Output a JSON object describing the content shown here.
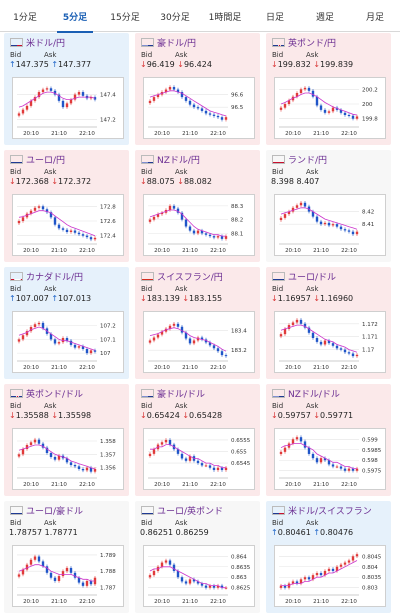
{
  "tabs": [
    {
      "label": "1分足",
      "active": false
    },
    {
      "label": "5分足",
      "active": true
    },
    {
      "label": "15分足",
      "active": false
    },
    {
      "label": "30分足",
      "active": false
    },
    {
      "label": "1時間足",
      "active": false
    },
    {
      "label": "日足",
      "active": false
    },
    {
      "label": "週足",
      "active": false
    },
    {
      "label": "月足",
      "active": false
    }
  ],
  "labels": {
    "bid": "Bid",
    "ask": "Ask"
  },
  "colors": {
    "up_arrow": "#1d64c8",
    "down_arrow": "#d93838",
    "title": "#6a2c91",
    "ma_line": "#cc33cc",
    "candle_up": "#e03a3a",
    "candle_down": "#1f55c8",
    "active_tab": "#1a5fb4"
  },
  "chart_data": [
    {
      "type": "candlestick",
      "pair": "米ドル/円",
      "flag": "us",
      "trend": "up",
      "bid": "147.375",
      "ask": "147.377",
      "x_ticks": [
        "20:10",
        "21:10",
        "22:10"
      ],
      "y_ticks": [
        "147.4",
        "147.2"
      ],
      "ylim": [
        147.15,
        147.5
      ],
      "tick_values": [
        147.4,
        147.2
      ],
      "closes": [
        147.25,
        147.28,
        147.31,
        147.35,
        147.38,
        147.42,
        147.44,
        147.45,
        147.43,
        147.4,
        147.35,
        147.3,
        147.33,
        147.36,
        147.4,
        147.42,
        147.39,
        147.37,
        147.38,
        147.36
      ],
      "ma": [
        147.3,
        147.31,
        147.33,
        147.35,
        147.37,
        147.39,
        147.41,
        147.42,
        147.42,
        147.41,
        147.39,
        147.37,
        147.36,
        147.36,
        147.37,
        147.38,
        147.38,
        147.38,
        147.38,
        147.37
      ]
    },
    {
      "type": "candlestick",
      "pair": "豪ドル/円",
      "flag": "au",
      "trend": "down",
      "bid": "96.419",
      "ask": "96.424",
      "x_ticks": [
        "20:10",
        "21:10",
        "22:10"
      ],
      "y_ticks": [
        "96.6",
        "96.5"
      ],
      "ylim": [
        96.35,
        96.7
      ],
      "tick_values": [
        96.6,
        96.5
      ],
      "closes": [
        96.55,
        96.58,
        96.6,
        96.62,
        96.64,
        96.66,
        96.64,
        96.62,
        96.58,
        96.55,
        96.52,
        96.5,
        96.49,
        96.47,
        96.45,
        96.44,
        96.43,
        96.42,
        96.4,
        96.42
      ],
      "ma": [
        96.58,
        96.59,
        96.6,
        96.61,
        96.62,
        96.63,
        96.63,
        96.62,
        96.61,
        96.59,
        96.57,
        96.55,
        96.53,
        96.51,
        96.49,
        96.47,
        96.46,
        96.45,
        96.44,
        96.43
      ]
    },
    {
      "type": "candlestick",
      "pair": "英ポンド/円",
      "flag": "gb",
      "trend": "down",
      "bid": "199.832",
      "ask": "199.839",
      "x_ticks": [
        "20:10",
        "21:10",
        "22:10"
      ],
      "y_ticks": [
        "200.2",
        "200",
        "199.8"
      ],
      "ylim": [
        199.7,
        200.3
      ],
      "tick_values": [
        200.2,
        200.0,
        199.8
      ],
      "closes": [
        199.95,
        200.0,
        200.05,
        200.1,
        200.15,
        200.2,
        200.22,
        200.18,
        200.1,
        199.98,
        199.92,
        199.88,
        199.9,
        199.95,
        199.92,
        199.88,
        199.85,
        199.84,
        199.8,
        199.83
      ],
      "ma": [
        200.0,
        200.02,
        200.05,
        200.08,
        200.1,
        200.13,
        200.15,
        200.15,
        200.13,
        200.1,
        200.06,
        200.02,
        199.99,
        199.96,
        199.94,
        199.92,
        199.9,
        199.88,
        199.86,
        199.85
      ]
    },
    {
      "type": "candlestick",
      "pair": "ユーロ/円",
      "flag": "eu",
      "trend": "down",
      "bid": "172.368",
      "ask": "172.372",
      "x_ticks": [
        "20:10",
        "21:10",
        "22:10"
      ],
      "y_ticks": [
        "172.8",
        "172.6",
        "172.4"
      ],
      "ylim": [
        172.3,
        172.9
      ],
      "tick_values": [
        172.8,
        172.6,
        172.4
      ],
      "closes": [
        172.6,
        172.65,
        172.7,
        172.74,
        172.78,
        172.8,
        172.76,
        172.72,
        172.65,
        172.55,
        172.5,
        172.48,
        172.45,
        172.47,
        172.44,
        172.42,
        172.4,
        172.38,
        172.35,
        172.37
      ],
      "ma": [
        172.65,
        172.66,
        172.68,
        172.7,
        172.72,
        172.74,
        172.74,
        172.73,
        172.71,
        172.67,
        172.63,
        172.59,
        172.55,
        172.52,
        172.5,
        172.48,
        172.46,
        172.44,
        172.42,
        172.4
      ]
    },
    {
      "type": "candlestick",
      "pair": "NZドル/円",
      "flag": "nz",
      "trend": "down",
      "bid": "88.075",
      "ask": "88.082",
      "x_ticks": [
        "20:10",
        "21:10",
        "22:10"
      ],
      "y_ticks": [
        "88.3",
        "88.2",
        "88.1"
      ],
      "ylim": [
        88.03,
        88.35
      ],
      "tick_values": [
        88.3,
        88.2,
        88.1
      ],
      "closes": [
        88.2,
        88.22,
        88.24,
        88.25,
        88.27,
        88.3,
        88.28,
        88.25,
        88.2,
        88.15,
        88.12,
        88.1,
        88.12,
        88.1,
        88.09,
        88.08,
        88.07,
        88.08,
        88.06,
        88.08
      ],
      "ma": [
        88.22,
        88.23,
        88.24,
        88.25,
        88.26,
        88.27,
        88.27,
        88.26,
        88.24,
        88.21,
        88.18,
        88.15,
        88.13,
        88.12,
        88.11,
        88.1,
        88.09,
        88.09,
        88.08,
        88.08
      ]
    },
    {
      "type": "candlestick",
      "pair": "ランド/円",
      "flag": "za",
      "trend": "flat",
      "bid": "8.398",
      "ask": "8.407",
      "x_ticks": [
        "20:10",
        "21:10",
        "22:10"
      ],
      "y_ticks": [
        "8.42",
        "8.41"
      ],
      "ylim": [
        8.395,
        8.43
      ],
      "tick_values": [
        8.42,
        8.41
      ],
      "closes": [
        8.415,
        8.418,
        8.42,
        8.423,
        8.425,
        8.427,
        8.424,
        8.42,
        8.416,
        8.412,
        8.41,
        8.411,
        8.409,
        8.41,
        8.408,
        8.406,
        8.405,
        8.404,
        8.402,
        8.404
      ],
      "ma": [
        8.418,
        8.419,
        8.42,
        8.421,
        8.422,
        8.423,
        8.423,
        8.422,
        8.42,
        8.418,
        8.416,
        8.414,
        8.413,
        8.412,
        8.411,
        8.41,
        8.409,
        8.408,
        8.407,
        8.406
      ]
    },
    {
      "type": "candlestick",
      "pair": "カナダドル/円",
      "flag": "ca",
      "trend": "up",
      "bid": "107.007",
      "ask": "107.013",
      "x_ticks": [
        "20:10",
        "21:10",
        "22:10"
      ],
      "y_ticks": [
        "107.2",
        "107.1",
        "107"
      ],
      "ylim": [
        106.95,
        107.27
      ],
      "tick_values": [
        107.2,
        107.1,
        107.0
      ],
      "closes": [
        107.1,
        107.13,
        107.16,
        107.19,
        107.21,
        107.22,
        107.18,
        107.14,
        107.1,
        107.07,
        107.08,
        107.11,
        107.09,
        107.06,
        107.04,
        107.05,
        107.03,
        107.0,
        107.02,
        107.01
      ],
      "ma": [
        107.13,
        107.14,
        107.15,
        107.17,
        107.18,
        107.19,
        107.18,
        107.16,
        107.14,
        107.12,
        107.1,
        107.09,
        107.09,
        107.08,
        107.07,
        107.06,
        107.05,
        107.04,
        107.03,
        107.02
      ]
    },
    {
      "type": "candlestick",
      "pair": "スイスフラン/円",
      "flag": "ch",
      "trend": "down",
      "bid": "183.139",
      "ask": "183.155",
      "x_ticks": [
        "20:10",
        "21:10",
        "22:10"
      ],
      "y_ticks": [
        "183.4",
        "183.2"
      ],
      "ylim": [
        183.1,
        183.55
      ],
      "tick_values": [
        183.4,
        183.2
      ],
      "closes": [
        183.3,
        183.33,
        183.36,
        183.39,
        183.42,
        183.45,
        183.47,
        183.44,
        183.38,
        183.32,
        183.27,
        183.3,
        183.33,
        183.31,
        183.28,
        183.25,
        183.22,
        183.19,
        183.15,
        183.14
      ],
      "ma": [
        183.35,
        183.36,
        183.37,
        183.39,
        183.41,
        183.42,
        183.43,
        183.42,
        183.4,
        183.38,
        183.35,
        183.33,
        183.32,
        183.31,
        183.3,
        183.28,
        183.26,
        183.24,
        183.21,
        183.19
      ]
    },
    {
      "type": "candlestick",
      "pair": "ユーロ/ドル",
      "flag": "eu",
      "trend": "down",
      "bid": "1.16957",
      "ask": "1.16960",
      "x_ticks": [
        "20:10",
        "21:10",
        "22:10"
      ],
      "y_ticks": [
        "1.172",
        "1.171",
        "1.17"
      ],
      "ylim": [
        1.1692,
        1.1726
      ],
      "tick_values": [
        1.172,
        1.171,
        1.17
      ],
      "closes": [
        1.1712,
        1.1716,
        1.1719,
        1.1721,
        1.1723,
        1.172,
        1.1717,
        1.1713,
        1.1709,
        1.1706,
        1.1704,
        1.1707,
        1.1705,
        1.1703,
        1.1701,
        1.17,
        1.1698,
        1.1697,
        1.1695,
        1.1696
      ],
      "ma": [
        1.1715,
        1.1716,
        1.1717,
        1.1718,
        1.1719,
        1.1719,
        1.1718,
        1.1716,
        1.1714,
        1.1712,
        1.171,
        1.1708,
        1.1707,
        1.1706,
        1.1704,
        1.1703,
        1.1702,
        1.17,
        1.1699,
        1.1698
      ]
    },
    {
      "type": "candlestick",
      "pair": "英ポンド/ドル",
      "flag": "gb",
      "trend": "down",
      "bid": "1.35588",
      "ask": "1.35598",
      "x_ticks": [
        "20:10",
        "21:10",
        "22:10"
      ],
      "y_ticks": [
        "1.358",
        "1.357",
        "1.356"
      ],
      "ylim": [
        1.3553,
        1.3586
      ],
      "tick_values": [
        1.358,
        1.357,
        1.356
      ],
      "closes": [
        1.357,
        1.3574,
        1.3577,
        1.3579,
        1.3581,
        1.3578,
        1.3575,
        1.3571,
        1.3568,
        1.3566,
        1.3569,
        1.3567,
        1.3564,
        1.3562,
        1.3561,
        1.3559,
        1.3558,
        1.356,
        1.3557,
        1.3559
      ],
      "ma": [
        1.3573,
        1.3574,
        1.3575,
        1.3576,
        1.3577,
        1.3577,
        1.3576,
        1.3574,
        1.3572,
        1.357,
        1.3569,
        1.3568,
        1.3567,
        1.3565,
        1.3564,
        1.3563,
        1.3562,
        1.3561,
        1.356,
        1.3559
      ]
    },
    {
      "type": "candlestick",
      "pair": "豪ドル/ドル",
      "flag": "au",
      "trend": "down",
      "bid": "0.65424",
      "ask": "0.65428",
      "x_ticks": [
        "20:10",
        "21:10",
        "22:10"
      ],
      "y_ticks": [
        "0.6555",
        "0.655",
        "0.6545"
      ],
      "ylim": [
        0.6539,
        0.6558
      ],
      "tick_values": [
        0.6555,
        0.655,
        0.6545
      ],
      "closes": [
        0.6549,
        0.6551,
        0.6553,
        0.6554,
        0.6555,
        0.6553,
        0.6551,
        0.6549,
        0.6547,
        0.6546,
        0.6548,
        0.6546,
        0.6545,
        0.6544,
        0.6544,
        0.6543,
        0.6542,
        0.6543,
        0.6542,
        0.6543
      ],
      "ma": [
        0.6551,
        0.6551,
        0.6552,
        0.6552,
        0.6553,
        0.6553,
        0.6552,
        0.6551,
        0.655,
        0.6549,
        0.6548,
        0.6547,
        0.6547,
        0.6546,
        0.6545,
        0.6545,
        0.6544,
        0.6544,
        0.6543,
        0.6543
      ]
    },
    {
      "type": "candlestick",
      "pair": "NZドル/ドル",
      "flag": "nz",
      "trend": "down",
      "bid": "0.59757",
      "ask": "0.59771",
      "x_ticks": [
        "20:10",
        "21:10",
        "22:10"
      ],
      "y_ticks": [
        "0.599",
        "0.5985",
        "0.598",
        "0.5975"
      ],
      "ylim": [
        0.5972,
        0.5993
      ],
      "tick_values": [
        0.599,
        0.5985,
        0.598,
        0.5975
      ],
      "closes": [
        0.5984,
        0.5986,
        0.5988,
        0.599,
        0.5991,
        0.5989,
        0.5986,
        0.5983,
        0.5981,
        0.5979,
        0.5981,
        0.598,
        0.5978,
        0.5977,
        0.5977,
        0.5976,
        0.5975,
        0.5976,
        0.5975,
        0.5976
      ],
      "ma": [
        0.5986,
        0.5987,
        0.5987,
        0.5988,
        0.5988,
        0.5988,
        0.5987,
        0.5986,
        0.5985,
        0.5983,
        0.5982,
        0.5981,
        0.598,
        0.5979,
        0.5979,
        0.5978,
        0.5977,
        0.5977,
        0.5976,
        0.5976
      ]
    },
    {
      "type": "candlestick",
      "pair": "ユーロ/豪ドル",
      "flag": "eu",
      "trend": "flat",
      "bid": "1.78757",
      "ask": "1.78771",
      "x_ticks": [
        "20:10",
        "21:10",
        "22:10"
      ],
      "y_ticks": [
        "1.789",
        "1.788",
        "1.787"
      ],
      "ylim": [
        1.7866,
        1.7893
      ],
      "tick_values": [
        1.789,
        1.788,
        1.787
      ],
      "closes": [
        1.7878,
        1.7881,
        1.7884,
        1.7887,
        1.7889,
        1.7886,
        1.7883,
        1.7879,
        1.7876,
        1.7874,
        1.7877,
        1.788,
        1.7882,
        1.7879,
        1.7876,
        1.7873,
        1.7871,
        1.7874,
        1.7872,
        1.7876
      ],
      "ma": [
        1.788,
        1.7881,
        1.7882,
        1.7883,
        1.7884,
        1.7884,
        1.7883,
        1.7882,
        1.788,
        1.7879,
        1.7878,
        1.7878,
        1.7878,
        1.7878,
        1.7877,
        1.7876,
        1.7875,
        1.7875,
        1.7874,
        1.7874
      ]
    },
    {
      "type": "candlestick",
      "pair": "ユーロ/英ポンド",
      "flag": "eu",
      "trend": "flat",
      "bid": "0.86251",
      "ask": "0.86259",
      "x_ticks": [
        "20:10",
        "21:10",
        "22:10"
      ],
      "y_ticks": [
        "0.864",
        "0.8635",
        "0.863",
        "0.8625"
      ],
      "ylim": [
        0.8622,
        0.8643
      ],
      "tick_values": [
        0.864,
        0.8635,
        0.863,
        0.8625
      ],
      "closes": [
        0.8631,
        0.8633,
        0.8635,
        0.8637,
        0.8638,
        0.8636,
        0.8633,
        0.863,
        0.8628,
        0.8627,
        0.8629,
        0.8628,
        0.8627,
        0.8626,
        0.8625,
        0.8626,
        0.8625,
        0.8626,
        0.8625,
        0.8625
      ],
      "ma": [
        0.8633,
        0.8634,
        0.8634,
        0.8635,
        0.8635,
        0.8635,
        0.8634,
        0.8633,
        0.8632,
        0.8631,
        0.863,
        0.8629,
        0.8628,
        0.8627,
        0.8627,
        0.8626,
        0.8626,
        0.8626,
        0.8625,
        0.8625
      ]
    },
    {
      "type": "candlestick",
      "pair": "米ドル/スイスフラン",
      "flag": "us",
      "trend": "up",
      "bid": "0.80461",
      "ask": "0.80476",
      "x_ticks": [
        "20:10",
        "21:10",
        "22:10"
      ],
      "y_ticks": [
        "0.8045",
        "0.804",
        "0.8035",
        "0.803"
      ],
      "ylim": [
        0.8027,
        0.8048
      ],
      "tick_values": [
        0.8045,
        0.804,
        0.8035,
        0.803
      ],
      "closes": [
        0.8031,
        0.803,
        0.8032,
        0.8033,
        0.8032,
        0.8034,
        0.8035,
        0.8034,
        0.8036,
        0.8037,
        0.8036,
        0.8038,
        0.8039,
        0.8038,
        0.804,
        0.8041,
        0.8042,
        0.8043,
        0.8045,
        0.8046
      ],
      "ma": [
        0.8031,
        0.8031,
        0.8031,
        0.8032,
        0.8032,
        0.8032,
        0.8033,
        0.8033,
        0.8034,
        0.8035,
        0.8035,
        0.8036,
        0.8037,
        0.8037,
        0.8038,
        0.8039,
        0.804,
        0.8041,
        0.8042,
        0.8043
      ]
    }
  ]
}
